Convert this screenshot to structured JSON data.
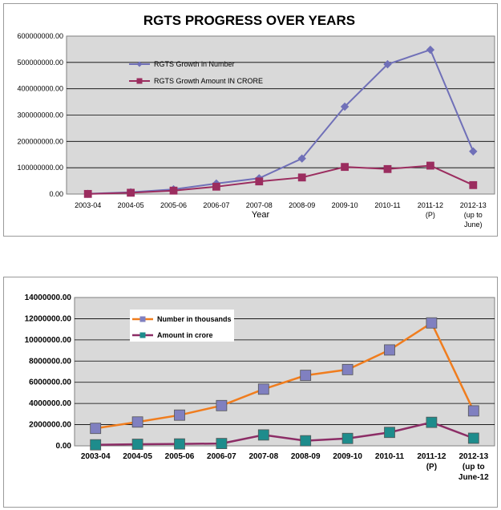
{
  "chart_data": [
    {
      "type": "line",
      "title": "RGTS   PROGRESS OVER YEARS",
      "xlabel": "Year",
      "ylabel": "",
      "ylim": [
        0,
        600000000
      ],
      "y_ticks": [
        "0.00",
        "100000000.00",
        "200000000.00",
        "300000000.00",
        "400000000.00",
        "500000000.00",
        "600000000.00"
      ],
      "grid": true,
      "legend_position": "top-left",
      "categories": [
        [
          "2003-04"
        ],
        [
          "2004-05"
        ],
        [
          "2005-06"
        ],
        [
          "2006-07"
        ],
        [
          "2007-08"
        ],
        [
          "2008-09"
        ],
        [
          "2009-10"
        ],
        [
          "2010-11"
        ],
        [
          "2011-12",
          "(P)"
        ],
        [
          "2012-13",
          "(up to",
          "June)"
        ]
      ],
      "series": [
        {
          "name": "RGTS Growth in Number",
          "color": "#7070b8",
          "marker": "diamond",
          "values": [
            1000000,
            7000000,
            18000000,
            40000000,
            60000000,
            135000000,
            332000000,
            493000000,
            548000000,
            162000000
          ]
        },
        {
          "name": "RGTS Growth Amount IN CRORE",
          "color": "#9b2d5f",
          "marker": "square",
          "values": [
            500000,
            5000000,
            13000000,
            28000000,
            48000000,
            63000000,
            103000000,
            95000000,
            108000000,
            34000000
          ]
        }
      ]
    },
    {
      "type": "line",
      "title": "",
      "xlabel": "",
      "ylabel": "",
      "ylim": [
        0,
        14000000
      ],
      "y_ticks": [
        "0.00",
        "2000000.00",
        "4000000.00",
        "6000000.00",
        "8000000.00",
        "10000000.00",
        "12000000.00",
        "14000000.00"
      ],
      "grid": true,
      "legend_position": "top-left",
      "categories": [
        [
          "2003-04"
        ],
        [
          "2004-05"
        ],
        [
          "2005-06"
        ],
        [
          "2006-07"
        ],
        [
          "2007-08"
        ],
        [
          "2008-09"
        ],
        [
          "2009-10"
        ],
        [
          "2010-11"
        ],
        [
          "2011-12",
          "(P)"
        ],
        [
          "2012-13",
          "(up to",
          "June-12"
        ]
      ],
      "series": [
        {
          "name": "Number in thousands",
          "color": "#f07d1e",
          "marker_color": "#8080c0",
          "marker": "square",
          "values": [
            1650000,
            2250000,
            2900000,
            3800000,
            5350000,
            6650000,
            7200000,
            9050000,
            11600000,
            3300000
          ]
        },
        {
          "name": "Amount in crore",
          "color": "#8c2d66",
          "marker_color": "#1e8c8c",
          "marker": "square",
          "values": [
            100000,
            150000,
            180000,
            220000,
            1030000,
            480000,
            700000,
            1270000,
            2220000,
            720000
          ]
        }
      ]
    }
  ]
}
